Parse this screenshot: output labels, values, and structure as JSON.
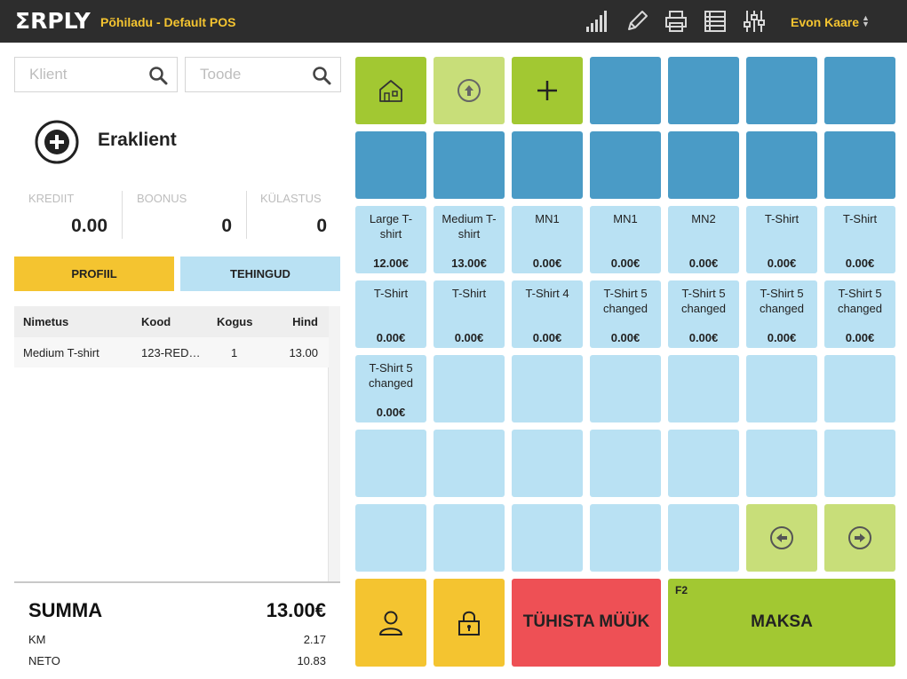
{
  "header": {
    "logo": "ΣRPLY",
    "location": "Põhiladu - Default POS",
    "icons": [
      "signal-icon",
      "pencil-icon",
      "printer-icon",
      "list-icon",
      "equalizer-icon"
    ],
    "user": "Evon Kaare"
  },
  "search": {
    "client_placeholder": "Klient",
    "product_placeholder": "Toode"
  },
  "client": {
    "name": "Eraklient",
    "stats": [
      {
        "label": "KREDIIT",
        "value": "0.00"
      },
      {
        "label": "BOONUS",
        "value": "0"
      },
      {
        "label": "KÜLASTUS",
        "value": "0"
      }
    ],
    "buttons": {
      "profile": "PROFIIL",
      "transactions": "TEHINGUD"
    }
  },
  "table": {
    "headers": {
      "name": "Nimetus",
      "code": "Kood",
      "qty": "Kogus",
      "price": "Hind"
    },
    "rows": [
      {
        "name": "Medium T-shirt",
        "code": "123-RED…",
        "qty": "1",
        "price": "13.00"
      }
    ]
  },
  "summary": {
    "total_label": "SUMMA",
    "total_value": "13.00€",
    "vat_label": "KM",
    "vat_value": "2.17",
    "net_label": "NETO",
    "net_value": "10.83"
  },
  "products": [
    {
      "name": "Large T-shirt",
      "price": "12.00€"
    },
    {
      "name": "Medium T-shirt",
      "price": "13.00€"
    },
    {
      "name": "MN1",
      "price": "0.00€"
    },
    {
      "name": "MN1",
      "price": "0.00€"
    },
    {
      "name": "MN2",
      "price": "0.00€"
    },
    {
      "name": "T-Shirt",
      "price": "0.00€"
    },
    {
      "name": "T-Shirt",
      "price": "0.00€"
    },
    {
      "name": "T-Shirt",
      "price": "0.00€"
    },
    {
      "name": "T-Shirt",
      "price": "0.00€"
    },
    {
      "name": "T-Shirt 4",
      "price": "0.00€"
    },
    {
      "name": "T-Shirt 5 changed",
      "price": "0.00€"
    },
    {
      "name": "T-Shirt 5 changed",
      "price": "0.00€"
    },
    {
      "name": "T-Shirt 5 changed",
      "price": "0.00€"
    },
    {
      "name": "T-Shirt 5 changed",
      "price": "0.00€"
    },
    {
      "name": "T-Shirt 5 changed",
      "price": "0.00€"
    }
  ],
  "actions": {
    "cancel": "TÜHISTA MÜÜK",
    "pay_key": "F2",
    "pay": "MAKSA"
  },
  "colors": {
    "header_bg": "#2d2d2d",
    "accent_yellow": "#f4c430",
    "tile_blue": "#4a9bc6",
    "tile_light": "#b9e1f3",
    "tile_green": "#a2c832",
    "tile_lightgreen": "#c8de79",
    "cancel_red": "#ee5055",
    "tab_light": "#b9e1f3"
  }
}
